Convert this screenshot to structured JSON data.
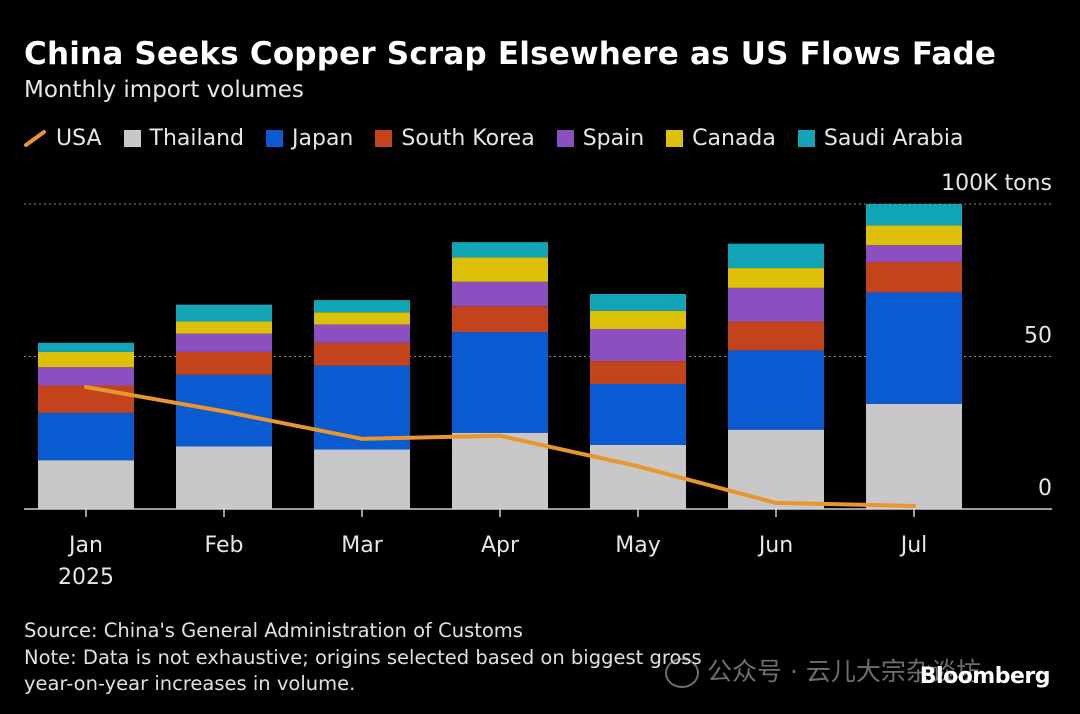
{
  "header": {
    "title": "China Seeks Copper Scrap Elsewhere as US Flows Fade",
    "subtitle": "Monthly import volumes"
  },
  "legend": [
    {
      "name": "USA",
      "color": "#e8962d",
      "kind": "line"
    },
    {
      "name": "Thailand",
      "color": "#c8c8c8",
      "kind": "box"
    },
    {
      "name": "Japan",
      "color": "#0a5bd1",
      "kind": "box"
    },
    {
      "name": "South Korea",
      "color": "#c2431c",
      "kind": "box"
    },
    {
      "name": "Spain",
      "color": "#8c4fc0",
      "kind": "box"
    },
    {
      "name": "Canada",
      "color": "#ddc008",
      "kind": "box"
    },
    {
      "name": "Saudi Arabia",
      "color": "#12a5b8",
      "kind": "box"
    }
  ],
  "chart_data": {
    "type": "bar",
    "stacked": true,
    "title": "China Seeks Copper Scrap Elsewhere as US Flows Fade",
    "subtitle": "Monthly import volumes",
    "unit_label": "100K tons",
    "categories": [
      "Jan",
      "Feb",
      "Mar",
      "Apr",
      "May",
      "Jun",
      "Jul"
    ],
    "year_label": "2025",
    "y_ticks": [
      {
        "value": 0,
        "label": "0"
      },
      {
        "value": 50,
        "label": "50"
      },
      {
        "value": 100,
        "label": "100K tons"
      }
    ],
    "ylim": [
      0,
      100
    ],
    "series": [
      {
        "name": "Thailand",
        "color": "#c8c8c8",
        "values": [
          16,
          20.5,
          19.5,
          25,
          21,
          26,
          34.5
        ]
      },
      {
        "name": "Japan",
        "color": "#0a5bd1",
        "values": [
          15.5,
          23.5,
          27.5,
          33,
          20,
          26,
          36.5
        ]
      },
      {
        "name": "South Korea",
        "color": "#c2431c",
        "values": [
          9,
          7.5,
          7.5,
          8.5,
          7.5,
          9.5,
          10
        ]
      },
      {
        "name": "Spain",
        "color": "#8c4fc0",
        "values": [
          6,
          6,
          6,
          8,
          10.5,
          11,
          5.5
        ]
      },
      {
        "name": "Canada",
        "color": "#ddc008",
        "values": [
          5,
          4,
          4,
          8,
          6,
          6.5,
          6.5
        ]
      },
      {
        "name": "Saudi Arabia",
        "color": "#12a5b8",
        "values": [
          3,
          5.5,
          4,
          5,
          5.5,
          8,
          7
        ]
      }
    ],
    "line_series": {
      "name": "USA",
      "color": "#e8962d",
      "values": [
        40,
        32,
        23,
        24,
        14,
        2,
        1
      ]
    }
  },
  "footer": {
    "source": "Source: China's General Administration of Customs",
    "note_line1": "Note: Data is not exhaustive; origins selected based on biggest gross",
    "note_line2": "year-on-year increases in volume.",
    "brand": "Bloomberg",
    "watermark": "公众号 · 云儿大宗杂谈坊"
  }
}
